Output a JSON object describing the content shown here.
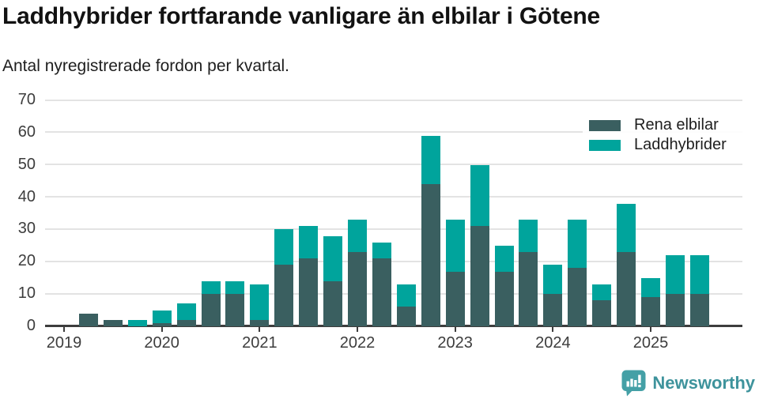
{
  "title": "Laddhybrider fortfarande vanligare än elbilar i Götene",
  "subtitle": "Antal nyregistrerade fordon per kvartal.",
  "chart_data": {
    "type": "bar",
    "stacked": true,
    "title": "Laddhybrider fortfarande vanligare än elbilar i Götene",
    "subtitle": "Antal nyregistrerade fordon per kvartal.",
    "x": [
      "2019 Q1",
      "2019 Q2",
      "2019 Q3",
      "2019 Q4",
      "2020 Q1",
      "2020 Q2",
      "2020 Q3",
      "2020 Q4",
      "2021 Q1",
      "2021 Q2",
      "2021 Q3",
      "2021 Q4",
      "2022 Q1",
      "2022 Q2",
      "2022 Q3",
      "2022 Q4",
      "2023 Q1",
      "2023 Q2",
      "2023 Q3",
      "2023 Q4",
      "2024 Q1",
      "2024 Q2",
      "2024 Q3",
      "2024 Q4",
      "2025 Q1",
      "2025 Q2",
      "2025 Q3"
    ],
    "series": [
      {
        "name": "Rena elbilar",
        "color": "#3a5f60",
        "values": [
          0,
          4,
          2,
          0,
          1,
          2,
          10,
          10,
          2,
          19,
          21,
          14,
          23,
          21,
          6,
          44,
          17,
          31,
          17,
          23,
          10,
          18,
          8,
          23,
          9,
          10,
          10
        ]
      },
      {
        "name": "Laddhybrider",
        "color": "#00a49c",
        "values": [
          0,
          0,
          0,
          2,
          4,
          5,
          4,
          4,
          11,
          11,
          10,
          14,
          10,
          5,
          7,
          15,
          16,
          19,
          8,
          10,
          9,
          15,
          5,
          15,
          6,
          12,
          12
        ]
      }
    ],
    "totals": [
      0,
      4,
      2,
      2,
      5,
      7,
      14,
      14,
      13,
      30,
      31,
      28,
      33,
      26,
      13,
      59,
      33,
      50,
      25,
      33,
      19,
      33,
      13,
      38,
      15,
      22,
      22
    ],
    "ylim": [
      0,
      70
    ],
    "yticks": [
      0,
      10,
      20,
      30,
      40,
      50,
      60,
      70
    ],
    "xticks": [
      {
        "label": "2019",
        "index": 0
      },
      {
        "label": "2020",
        "index": 4
      },
      {
        "label": "2021",
        "index": 8
      },
      {
        "label": "2022",
        "index": 12
      },
      {
        "label": "2023",
        "index": 16
      },
      {
        "label": "2024",
        "index": 20
      },
      {
        "label": "2025",
        "index": 24
      }
    ],
    "grid": true,
    "legend_position": "top-right",
    "colors": {
      "grid": "#e3e3e3",
      "axis": "#3d3d3d",
      "tick_label": "#3d3d3d",
      "background": "#ffffff"
    }
  },
  "legend": {
    "items": [
      {
        "label": "Rena elbilar",
        "color": "#3a5f60"
      },
      {
        "label": "Laddhybrider",
        "color": "#00a49c"
      }
    ]
  },
  "footer": {
    "brand": "Newsworthy",
    "brand_color": "#3e939c",
    "logo_icon": "bar-chart-speech-bubble-icon"
  }
}
